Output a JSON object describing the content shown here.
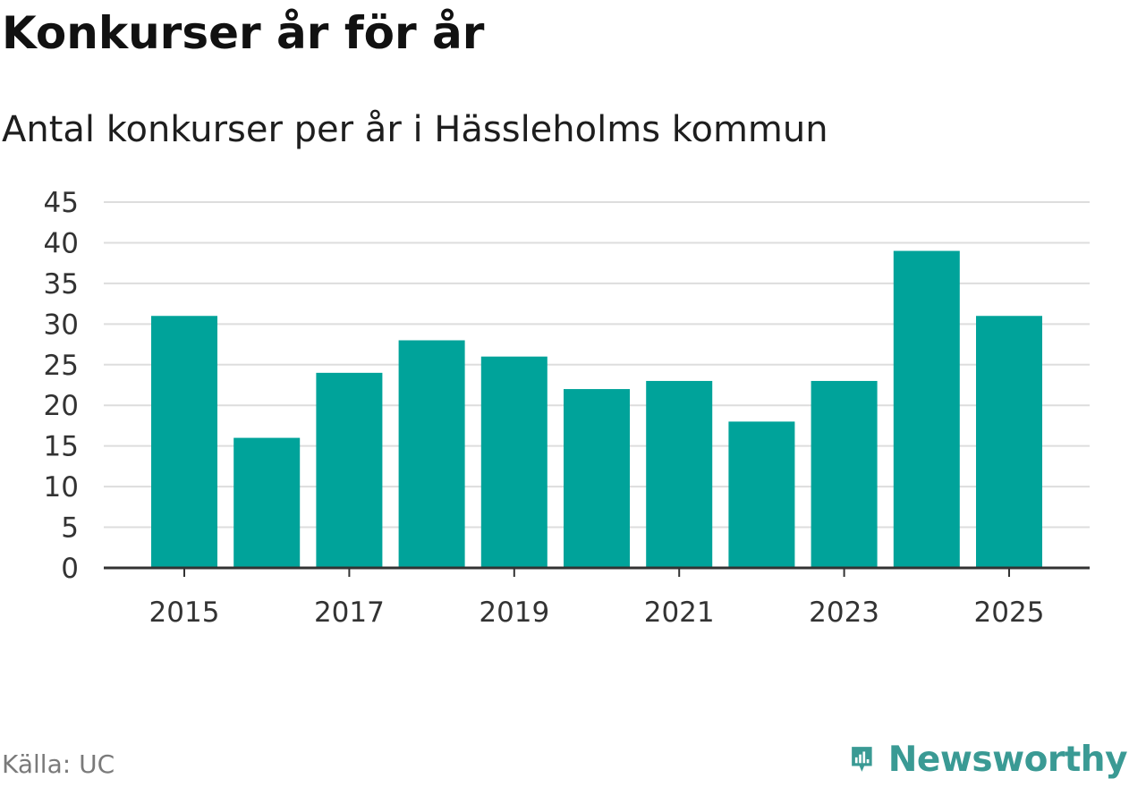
{
  "title": "Konkurser år för år",
  "subtitle": "Antal konkurser per år i Hässleholms kommun",
  "source": "Källa: UC",
  "brand": {
    "name": "Newsworthy",
    "color": "#3a9a94",
    "icon": "newsworthy-logo-icon"
  },
  "colors": {
    "bar": "#00a39a",
    "grid": "#dddddd",
    "axis": "#333333"
  },
  "chart_data": {
    "type": "bar",
    "categories": [
      "2015",
      "2016",
      "2017",
      "2018",
      "2019",
      "2020",
      "2021",
      "2022",
      "2023",
      "2024",
      "2025"
    ],
    "values": [
      31,
      16,
      24,
      28,
      26,
      22,
      23,
      18,
      23,
      39,
      31
    ],
    "x_tick_labels": [
      "2015",
      "2017",
      "2019",
      "2021",
      "2023",
      "2025"
    ],
    "y_ticks": [
      0,
      5,
      10,
      15,
      20,
      25,
      30,
      35,
      40,
      45
    ],
    "ylim": [
      0,
      45
    ],
    "grid": true,
    "legend": "none"
  }
}
